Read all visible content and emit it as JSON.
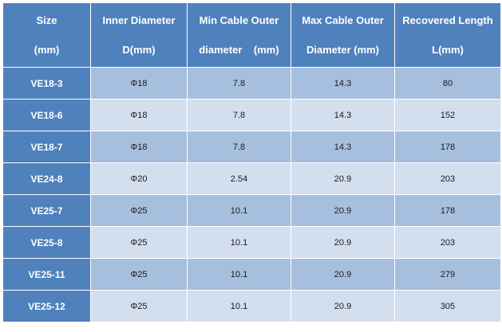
{
  "colors": {
    "header": "#4f81bd",
    "row_odd": "#a7bfde",
    "row_even": "#d3dfee"
  },
  "headers": [
    {
      "line1": "Size",
      "line2": "(mm)"
    },
    {
      "line1": "Inner Diameter",
      "line2": "D(mm)"
    },
    {
      "line1": "Min Cable Outer",
      "line2": "diameter    (mm)"
    },
    {
      "line1": "Max Cable Outer",
      "line2": "Diameter (mm)"
    },
    {
      "line1": "Recovered Length",
      "line2": "L(mm)"
    }
  ],
  "rows": [
    {
      "size": "VE18-3",
      "inner": "Φ18",
      "min": "7.8",
      "max": "14.3",
      "length": "80"
    },
    {
      "size": "VE18-6",
      "inner": "Φ18",
      "min": "7.8",
      "max": "14.3",
      "length": "152"
    },
    {
      "size": "VE18-7",
      "inner": "Φ18",
      "min": "7.8",
      "max": "14.3",
      "length": "178"
    },
    {
      "size": "VE24-8",
      "inner": "Φ20",
      "min": "2.54",
      "max": "20.9",
      "length": "203"
    },
    {
      "size": "VE25-7",
      "inner": "Φ25",
      "min": "10.1",
      "max": "20.9",
      "length": "178"
    },
    {
      "size": "VE25-8",
      "inner": "Φ25",
      "min": "10.1",
      "max": "20.9",
      "length": "203"
    },
    {
      "size": "VE25-11",
      "inner": "Φ25",
      "min": "10.1",
      "max": "20.9",
      "length": "279"
    },
    {
      "size": "VE25-12",
      "inner": "Φ25",
      "min": "10.1",
      "max": "20.9",
      "length": "305"
    }
  ]
}
